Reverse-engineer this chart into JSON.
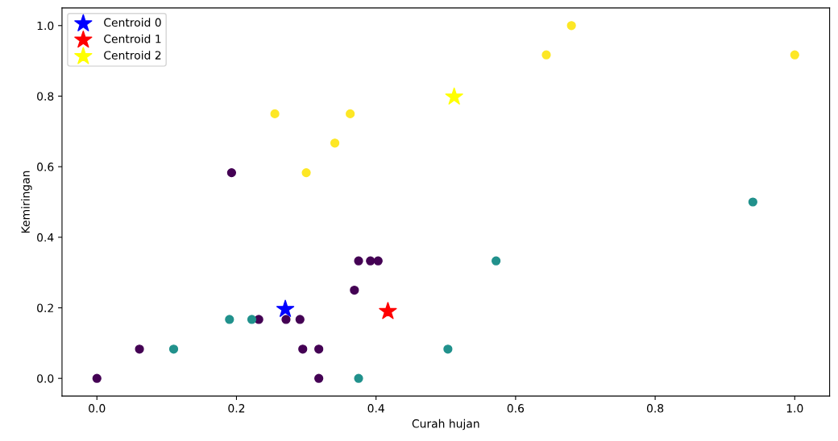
{
  "chart_data": {
    "type": "scatter",
    "xlabel": "Curah hujan",
    "ylabel": "Kemiringan",
    "xlim": [
      -0.05,
      1.05
    ],
    "ylim": [
      -0.05,
      1.05
    ],
    "xticks": [
      {
        "value": 0,
        "label": "0.0"
      },
      0.2,
      0.4,
      0.6,
      0.8,
      {
        "value": 1,
        "label": "1.0"
      }
    ],
    "yticks": [
      {
        "value": 0,
        "label": "0.0"
      },
      0.2,
      0.4,
      0.6,
      0.8,
      {
        "value": 1,
        "label": "1.0"
      }
    ],
    "grid": false,
    "legend": "top left",
    "series": [
      {
        "color": "#440154",
        "marker": "circle",
        "x": [
          0,
          0.061,
          0.193,
          0.232,
          0.271,
          0.291,
          0.295,
          0.318,
          0.318,
          0.369,
          0.375,
          0.392,
          0.403
        ],
        "values": [
          0,
          0.083,
          0.583,
          0.167,
          0.167,
          0.167,
          0.083,
          0.083,
          0,
          0.25,
          0.333,
          0.333,
          0.333
        ]
      },
      {
        "color": "#21918c",
        "marker": "circle",
        "x": [
          0.11,
          0.19,
          0.222,
          0.375,
          0.503,
          0.572,
          0.94
        ],
        "values": [
          0.083,
          0.167,
          0.167,
          0,
          0.083,
          0.333,
          0.5
        ]
      },
      {
        "color": "#fde725",
        "marker": "circle",
        "x": [
          0.255,
          0.3,
          0.341,
          0.363,
          0.644,
          0.68,
          1.0
        ],
        "values": [
          0.75,
          0.583,
          0.667,
          0.75,
          0.917,
          1.0,
          0.917
        ]
      },
      {
        "name": "Centroid 0",
        "color": "#0000ff",
        "marker": "star",
        "x": [
          0.27
        ],
        "values": [
          0.196
        ]
      },
      {
        "name": "Centroid 1",
        "color": "#ff0000",
        "marker": "star",
        "x": [
          0.417
        ],
        "values": [
          0.19
        ]
      },
      {
        "name": "Centroid 2",
        "color": "#ffff00",
        "marker": "star",
        "x": [
          0.512
        ],
        "values": [
          0.798
        ]
      }
    ]
  }
}
